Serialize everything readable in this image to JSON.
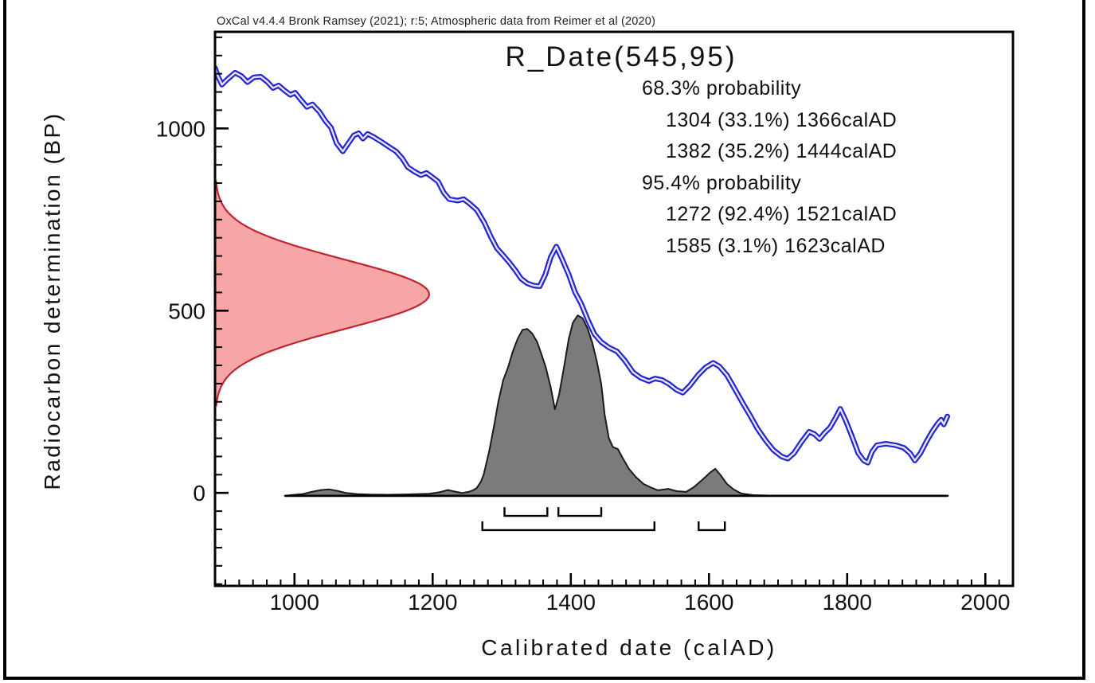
{
  "attribution": "OxCal v4.4.4 Bronk Ramsey (2021); r:5; Atmospheric data from Reimer et al (2020)",
  "title": "R_Date(545,95)",
  "results": {
    "lines": [
      {
        "text": "68.3% probability",
        "indent": false
      },
      {
        "text": "1304 (33.1%) 1366calAD",
        "indent": true
      },
      {
        "text": "1382 (35.2%) 1444calAD",
        "indent": true
      },
      {
        "text": "95.4% probability",
        "indent": false
      },
      {
        "text": "1272 (92.4%) 1521calAD",
        "indent": true
      },
      {
        "text": "1585 (3.1%) 1623calAD",
        "indent": true
      }
    ]
  },
  "axes": {
    "x_label": "Calibrated date (calAD)",
    "y_label": "Radiocarbon determination (BP)",
    "x_range": [
      885,
      2040
    ],
    "y_range": [
      -255,
      1265
    ],
    "x_major_ticks": [
      1000,
      1200,
      1400,
      1600,
      1800,
      2000
    ],
    "x_minor_step": 20,
    "y_major_ticks": [
      0,
      500,
      1000
    ],
    "y_minor_step": 50
  },
  "colors": {
    "curve": "#2424cb",
    "curve_core": "#e4e4f8",
    "likelihood_fill": "#f7a6a6",
    "likelihood_stroke": "#bf2433",
    "posterior_fill": "#7b7b7b",
    "posterior_stroke": "#1a1a1a",
    "axis": "#000000",
    "text": "#111111"
  },
  "chart_data": {
    "type": "line",
    "title": "R_Date(545,95)",
    "xlabel": "Calibrated date (calAD)",
    "ylabel": "Radiocarbon determination (BP)",
    "xlim": [
      885,
      2040
    ],
    "ylim": [
      -255,
      1265
    ],
    "grid": false,
    "series": [
      {
        "name": "intcal20-calibration-curve",
        "type": "line-envelope",
        "points": [
          [
            885,
            1166
          ],
          [
            889,
            1144
          ],
          [
            895,
            1120
          ],
          [
            903,
            1135
          ],
          [
            914,
            1153
          ],
          [
            923,
            1144
          ],
          [
            932,
            1127
          ],
          [
            941,
            1140
          ],
          [
            951,
            1142
          ],
          [
            960,
            1129
          ],
          [
            969,
            1111
          ],
          [
            977,
            1118
          ],
          [
            985,
            1105
          ],
          [
            994,
            1092
          ],
          [
            1001,
            1098
          ],
          [
            1010,
            1077
          ],
          [
            1018,
            1059
          ],
          [
            1026,
            1066
          ],
          [
            1036,
            1046
          ],
          [
            1045,
            1020
          ],
          [
            1053,
            1002
          ],
          [
            1061,
            959
          ],
          [
            1070,
            937
          ],
          [
            1078,
            959
          ],
          [
            1086,
            981
          ],
          [
            1093,
            987
          ],
          [
            1099,
            972
          ],
          [
            1106,
            985
          ],
          [
            1115,
            976
          ],
          [
            1126,
            963
          ],
          [
            1138,
            948
          ],
          [
            1147,
            937
          ],
          [
            1156,
            918
          ],
          [
            1164,
            894
          ],
          [
            1174,
            881
          ],
          [
            1183,
            872
          ],
          [
            1191,
            878
          ],
          [
            1199,
            867
          ],
          [
            1208,
            854
          ],
          [
            1216,
            824
          ],
          [
            1224,
            806
          ],
          [
            1236,
            802
          ],
          [
            1245,
            806
          ],
          [
            1254,
            793
          ],
          [
            1264,
            776
          ],
          [
            1275,
            741
          ],
          [
            1284,
            704
          ],
          [
            1293,
            671
          ],
          [
            1302,
            652
          ],
          [
            1311,
            632
          ],
          [
            1320,
            610
          ],
          [
            1328,
            588
          ],
          [
            1337,
            575
          ],
          [
            1346,
            569
          ],
          [
            1355,
            567
          ],
          [
            1363,
            599
          ],
          [
            1371,
            647
          ],
          [
            1379,
            676
          ],
          [
            1387,
            643
          ],
          [
            1397,
            599
          ],
          [
            1406,
            551
          ],
          [
            1415,
            519
          ],
          [
            1425,
            473
          ],
          [
            1434,
            436
          ],
          [
            1444,
            414
          ],
          [
            1455,
            399
          ],
          [
            1467,
            388
          ],
          [
            1478,
            364
          ],
          [
            1490,
            331
          ],
          [
            1501,
            316
          ],
          [
            1513,
            307
          ],
          [
            1522,
            314
          ],
          [
            1532,
            310
          ],
          [
            1542,
            299
          ],
          [
            1553,
            283
          ],
          [
            1562,
            275
          ],
          [
            1572,
            294
          ],
          [
            1584,
            323
          ],
          [
            1595,
            344
          ],
          [
            1606,
            357
          ],
          [
            1615,
            347
          ],
          [
            1626,
            323
          ],
          [
            1638,
            283
          ],
          [
            1649,
            246
          ],
          [
            1660,
            211
          ],
          [
            1670,
            177
          ],
          [
            1682,
            144
          ],
          [
            1693,
            118
          ],
          [
            1705,
            100
          ],
          [
            1714,
            94
          ],
          [
            1723,
            109
          ],
          [
            1734,
            140
          ],
          [
            1745,
            168
          ],
          [
            1753,
            161
          ],
          [
            1760,
            148
          ],
          [
            1767,
            164
          ],
          [
            1775,
            179
          ],
          [
            1783,
            205
          ],
          [
            1790,
            231
          ],
          [
            1798,
            198
          ],
          [
            1807,
            155
          ],
          [
            1816,
            109
          ],
          [
            1824,
            89
          ],
          [
            1830,
            83
          ],
          [
            1836,
            113
          ],
          [
            1843,
            131
          ],
          [
            1856,
            135
          ],
          [
            1870,
            131
          ],
          [
            1882,
            124
          ],
          [
            1891,
            109
          ],
          [
            1898,
            89
          ],
          [
            1906,
            109
          ],
          [
            1915,
            142
          ],
          [
            1923,
            168
          ],
          [
            1931,
            190
          ],
          [
            1936,
            201
          ],
          [
            1940,
            188
          ],
          [
            1945,
            210
          ]
        ]
      },
      {
        "name": "radiocarbon-date-likelihood",
        "type": "gaussian-vertical",
        "mean_bp": 545,
        "sigma_bp": 95,
        "extent_bp": [
          240,
          855
        ],
        "amplitude_years": 310
      },
      {
        "name": "calibrated-posterior-distribution",
        "type": "area",
        "baseline_bp": -8,
        "amplitude_bp": 495,
        "baseline_extent_years": [
          986,
          1946
        ],
        "points": [
          [
            986,
            0
          ],
          [
            1000,
            0.006
          ],
          [
            1012,
            0.01
          ],
          [
            1025,
            0.022
          ],
          [
            1038,
            0.032
          ],
          [
            1050,
            0.036
          ],
          [
            1062,
            0.028
          ],
          [
            1075,
            0.016
          ],
          [
            1090,
            0.01
          ],
          [
            1110,
            0.007
          ],
          [
            1135,
            0.006
          ],
          [
            1160,
            0.008
          ],
          [
            1180,
            0.01
          ],
          [
            1195,
            0.012
          ],
          [
            1210,
            0.02
          ],
          [
            1222,
            0.032
          ],
          [
            1232,
            0.024
          ],
          [
            1243,
            0.016
          ],
          [
            1252,
            0.022
          ],
          [
            1258,
            0.03
          ],
          [
            1264,
            0.044
          ],
          [
            1270,
            0.08
          ],
          [
            1274,
            0.12
          ],
          [
            1282,
            0.25
          ],
          [
            1289,
            0.39
          ],
          [
            1295,
            0.52
          ],
          [
            1302,
            0.64
          ],
          [
            1309,
            0.71
          ],
          [
            1316,
            0.8
          ],
          [
            1323,
            0.87
          ],
          [
            1330,
            0.92
          ],
          [
            1337,
            0.925
          ],
          [
            1344,
            0.9
          ],
          [
            1351,
            0.855
          ],
          [
            1357,
            0.79
          ],
          [
            1364,
            0.71
          ],
          [
            1371,
            0.6
          ],
          [
            1377,
            0.48
          ],
          [
            1383,
            0.56
          ],
          [
            1390,
            0.71
          ],
          [
            1397,
            0.87
          ],
          [
            1403,
            0.96
          ],
          [
            1410,
            1.0
          ],
          [
            1417,
            0.985
          ],
          [
            1424,
            0.93
          ],
          [
            1431,
            0.85
          ],
          [
            1438,
            0.74
          ],
          [
            1444,
            0.62
          ],
          [
            1449,
            0.45
          ],
          [
            1455,
            0.32
          ],
          [
            1461,
            0.27
          ],
          [
            1468,
            0.26
          ],
          [
            1475,
            0.21
          ],
          [
            1484,
            0.15
          ],
          [
            1494,
            0.105
          ],
          [
            1505,
            0.066
          ],
          [
            1515,
            0.048
          ],
          [
            1526,
            0.031
          ],
          [
            1541,
            0.039
          ],
          [
            1553,
            0.026
          ],
          [
            1567,
            0.022
          ],
          [
            1578,
            0.048
          ],
          [
            1590,
            0.088
          ],
          [
            1601,
            0.127
          ],
          [
            1609,
            0.15
          ],
          [
            1617,
            0.114
          ],
          [
            1626,
            0.066
          ],
          [
            1636,
            0.035
          ],
          [
            1647,
            0.013
          ],
          [
            1664,
            0.004
          ],
          [
            1682,
            0.002
          ],
          [
            1700,
            0
          ],
          [
            1946,
            0
          ]
        ]
      }
    ],
    "ranges": [
      {
        "label": "68.3% probability",
        "row": 1,
        "intervals": [
          {
            "from": 1304,
            "to": 1366,
            "p": 33.1
          },
          {
            "from": 1382,
            "to": 1444,
            "p": 35.2
          }
        ]
      },
      {
        "label": "95.4% probability",
        "row": 2,
        "intervals": [
          {
            "from": 1272,
            "to": 1521,
            "p": 92.4
          },
          {
            "from": 1585,
            "to": 1623,
            "p": 3.1
          }
        ]
      }
    ],
    "range_rows": {
      "1": {
        "base_bp": -63,
        "rise_bp": -39
      },
      "2": {
        "base_bp": -102,
        "rise_bp": -78
      }
    },
    "legend_position": "none"
  }
}
